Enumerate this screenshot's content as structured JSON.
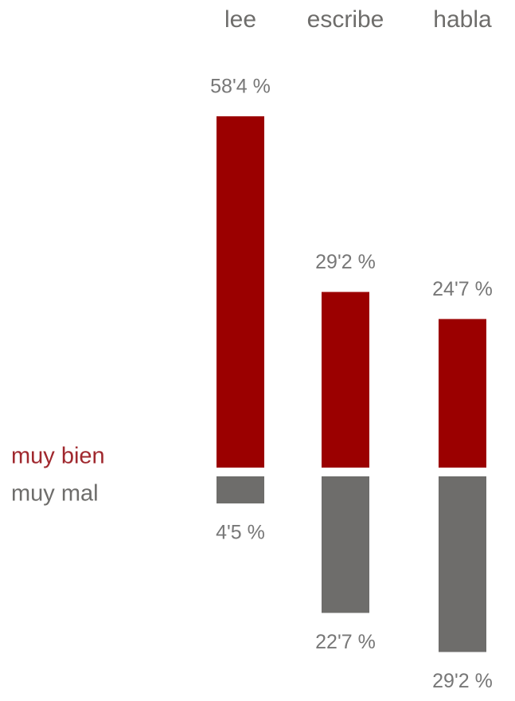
{
  "chart_data": {
    "type": "bar",
    "categories": [
      "lee",
      "escribe",
      "habla"
    ],
    "series": [
      {
        "name": "muy bien",
        "color": "#9b0000",
        "values": [
          58.4,
          29.2,
          24.7
        ],
        "value_labels": [
          "58'4 %",
          "29'2 %",
          "24'7 %"
        ]
      },
      {
        "name": "muy mal",
        "color": "#6e6d6b",
        "values": [
          4.5,
          22.7,
          29.2
        ],
        "value_labels": [
          "4'5 %",
          "22'7 %",
          "29'2 %"
        ]
      }
    ]
  }
}
